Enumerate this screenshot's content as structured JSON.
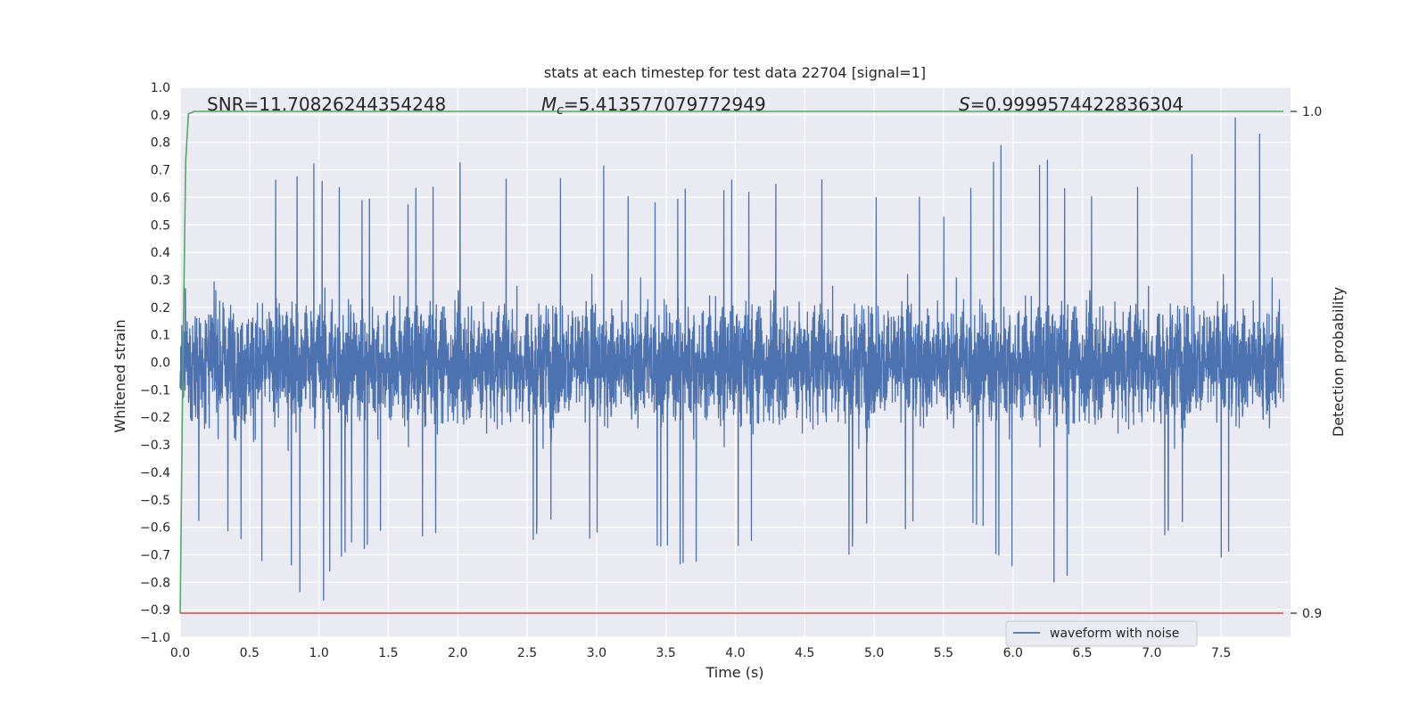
{
  "chart_data": {
    "type": "line",
    "title": "stats at each timestep for test data 22704 [signal=1]",
    "xlabel": "Time (s)",
    "ylabel": "Whitened strain",
    "y2label": "Detection probability",
    "xlim": [
      0.0,
      8.0
    ],
    "ylim": [
      -1.0,
      1.0
    ],
    "y2lim": [
      0.9,
      1.0
    ],
    "x_ticks": [
      "0.0",
      "0.5",
      "1.0",
      "1.5",
      "2.0",
      "2.5",
      "3.0",
      "3.5",
      "4.0",
      "4.5",
      "5.0",
      "5.5",
      "6.0",
      "6.5",
      "7.0",
      "7.5"
    ],
    "y_ticks": [
      "1.0",
      "0.9",
      "0.8",
      "0.7",
      "0.6",
      "0.5",
      "0.4",
      "0.3",
      "0.2",
      "0.1",
      "0.0",
      "−0.1",
      "−0.2",
      "−0.3",
      "−0.4",
      "−0.5",
      "−0.6",
      "−0.7",
      "−0.8",
      "−0.9",
      "−1.0"
    ],
    "y2_ticks": [
      "1.0",
      "0.9"
    ],
    "grid": true,
    "legend_position": "lower-right",
    "annotations": {
      "snr": "SNR=11.70826244354248",
      "mc_symbol": "M",
      "mc_sub": "c",
      "mc_value": "=5.413577079772949",
      "s_symbol": "S",
      "s_value": "=0.9999574422836304"
    },
    "series": [
      {
        "name": "waveform with noise",
        "axis": "left",
        "color": "#4c72b0",
        "description_amplitude_envelope": {
          "x": [
            0.0,
            0.5,
            1.0,
            1.5,
            2.0,
            2.5,
            3.0,
            3.5,
            4.0,
            4.5,
            5.0,
            5.5,
            6.0,
            6.5,
            7.0,
            7.5,
            8.0
          ],
          "y_max": [
            0.51,
            0.62,
            0.77,
            0.54,
            0.83,
            0.71,
            0.76,
            0.62,
            0.69,
            0.77,
            0.66,
            0.61,
            0.84,
            0.68,
            0.72,
            0.91,
            1.0
          ],
          "y_min": [
            -0.63,
            -0.72,
            -0.91,
            -0.58,
            -0.72,
            -0.65,
            -0.67,
            -0.77,
            -0.68,
            -0.79,
            -0.66,
            -0.6,
            -0.75,
            -0.87,
            -0.61,
            -0.74,
            -0.8
          ]
        }
      },
      {
        "name": "",
        "axis": "right",
        "color": "#55a868",
        "x": [
          0.0,
          0.02,
          0.04,
          0.06,
          0.1,
          7.95
        ],
        "y": [
          0.9,
          0.95,
          0.99,
          0.9995,
          1.0,
          1.0
        ]
      },
      {
        "name": "",
        "axis": "right",
        "color": "#c44e52",
        "x": [
          0.0,
          7.95
        ],
        "y": [
          0.9,
          0.9
        ]
      }
    ]
  }
}
